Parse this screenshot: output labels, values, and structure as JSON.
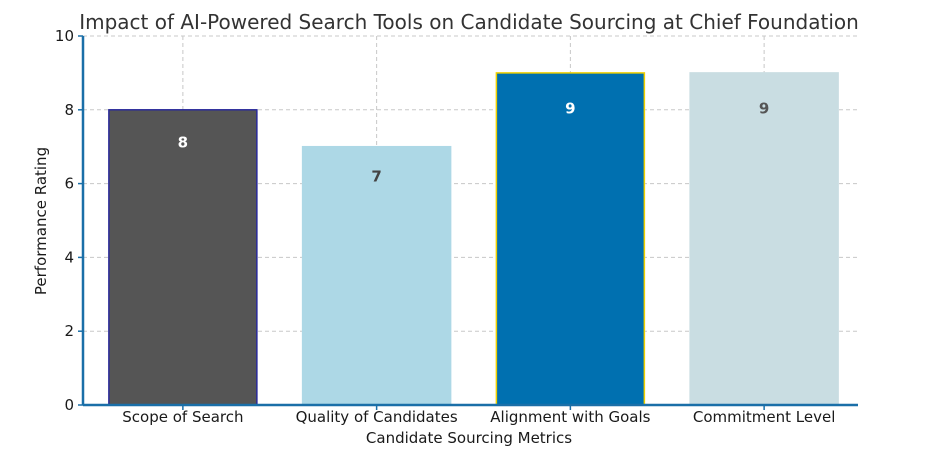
{
  "chart_data": {
    "type": "bar",
    "title": "Impact of AI-Powered Search Tools on Candidate Sourcing at Chief Foundation",
    "xlabel": "Candidate Sourcing Metrics",
    "ylabel": "Performance Rating",
    "categories": [
      "Scope of Search",
      "Quality of Candidates",
      "Alignment with Goals",
      "Commitment Level"
    ],
    "values": [
      8,
      7,
      9,
      9
    ],
    "data_labels": [
      "8",
      "7",
      "9",
      "9"
    ],
    "bar_colors": [
      "#555555",
      "#add8e6",
      "#0070b0",
      "#c9dde2"
    ],
    "bar_edge_colors": [
      "#2a2a9a",
      "#add8e6",
      "#f0d000",
      "#c9dde2"
    ],
    "label_colors": [
      "#ffffff",
      "#444444",
      "#ffffff",
      "#555555"
    ],
    "axis_color": "#1a6fa8",
    "ylim": [
      0,
      10
    ],
    "yticks": [
      "0",
      "2",
      "4",
      "6",
      "8",
      "10"
    ],
    "grid": true
  }
}
